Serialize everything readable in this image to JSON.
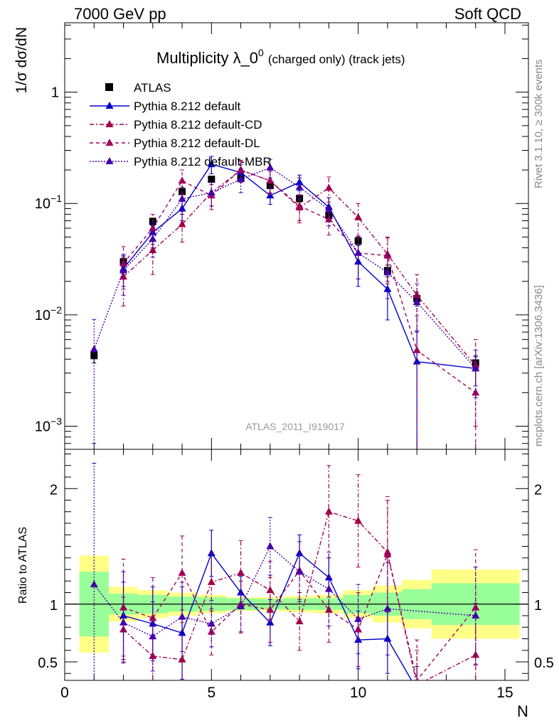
{
  "header": {
    "left": "7000 GeV pp",
    "right": "Soft QCD",
    "title_main": "Multiplicity λ_0",
    "title_sup": "0",
    "title_small": "(charged only) (track jets)",
    "side_top": "Rivet 3.1.10, ≥ 300k events",
    "side_bottom": "mcplots.cern.ch [arXiv:1306.3436]",
    "watermark": "ATLAS_2011_I919017"
  },
  "colors": {
    "default": "#0000cc",
    "cd": "#a0004a",
    "dl": "#a0005a",
    "mbr": "#4400aa",
    "band_inner": "#99ff99",
    "band_outer": "#ffff88"
  },
  "chart_data": [
    {
      "type": "scatter",
      "title": "Multiplicity λ_0^0 (charged only) (track jets)",
      "xlabel": "N",
      "ylabel": "1/σ dσ/dN",
      "yscale": "log",
      "xlim": [
        0,
        15.8
      ],
      "ylim": [
        0.00062,
        4.2
      ],
      "y_ticks": [
        {
          "v": 0.001,
          "base": "10",
          "exp": "−3"
        },
        {
          "v": 0.01,
          "base": "10",
          "exp": "−2"
        },
        {
          "v": 0.1,
          "base": "10",
          "exp": "−1"
        },
        {
          "v": 1,
          "base": "1",
          "exp": ""
        }
      ],
      "legend": [
        {
          "key": "atlas",
          "label": "ATLAS"
        },
        {
          "key": "default",
          "label": "Pythia 8.212 default"
        },
        {
          "key": "cd",
          "label": "Pythia 8.212 default-CD"
        },
        {
          "key": "dl",
          "label": "Pythia 8.212 default-DL"
        },
        {
          "key": "mbr",
          "label": "Pythia 8.212 default-MBR"
        }
      ],
      "series": [
        {
          "key": "atlas",
          "name": "ATLAS",
          "x": [
            1,
            2,
            3,
            4,
            5,
            6,
            7,
            8,
            9,
            10,
            11,
            12,
            14
          ],
          "y": [
            0.0043,
            0.03,
            0.069,
            0.128,
            0.165,
            0.17,
            0.145,
            0.111,
            0.078,
            0.046,
            0.025,
            0.014,
            0.0037
          ],
          "err": [
            0.0006,
            0.003,
            0.005,
            0.008,
            0.01,
            0.01,
            0.009,
            0.008,
            0.006,
            0.004,
            0.003,
            0.002,
            0.0005
          ]
        },
        {
          "key": "default",
          "name": "Pythia 8.212 default",
          "x": [
            2,
            3,
            4,
            5,
            6,
            7,
            8,
            9,
            10,
            11,
            12,
            14
          ],
          "y": [
            0.026,
            0.055,
            0.09,
            0.225,
            0.19,
            0.118,
            0.155,
            0.093,
            0.03,
            0.017,
            0.0038,
            0.0033
          ],
          "err": [
            0.008,
            0.012,
            0.02,
            0.04,
            0.035,
            0.02,
            0.025,
            0.02,
            0.012,
            0.008,
            0.0034,
            0.001
          ]
        },
        {
          "key": "cd",
          "name": "Pythia 8.212 default-CD",
          "x": [
            2,
            3,
            4,
            5,
            6,
            7,
            8,
            9,
            10,
            11,
            12,
            14
          ],
          "y": [
            0.022,
            0.038,
            0.065,
            0.125,
            0.2,
            0.16,
            0.092,
            0.138,
            0.075,
            0.035,
            0.015,
            0.0035
          ],
          "err": [
            0.01,
            0.015,
            0.02,
            0.03,
            0.04,
            0.035,
            0.025,
            0.035,
            0.025,
            0.015,
            0.008,
            0.0025
          ]
        },
        {
          "key": "dl",
          "name": "Pythia 8.212 default-DL",
          "x": [
            2,
            3,
            4,
            5,
            6,
            7,
            8,
            9,
            10,
            11,
            12,
            14
          ],
          "y": [
            0.029,
            0.06,
            0.16,
            0.118,
            0.2,
            0.16,
            0.095,
            0.072,
            0.036,
            0.034,
            0.0048,
            0.002
          ],
          "err": [
            0.012,
            0.02,
            0.04,
            0.03,
            0.045,
            0.04,
            0.025,
            0.02,
            0.015,
            0.015,
            0.005,
            0.0018
          ]
        },
        {
          "key": "mbr",
          "name": "Pythia 8.212 default-MBR",
          "x": [
            1,
            2,
            3,
            4,
            5,
            6,
            7,
            8,
            9,
            10,
            11,
            12,
            14
          ],
          "y": [
            0.0049,
            0.025,
            0.048,
            0.11,
            0.125,
            0.165,
            0.21,
            0.14,
            0.088,
            0.036,
            0.024,
            0.013,
            0.0033
          ],
          "err": [
            0.0042,
            0.01,
            0.015,
            0.03,
            0.03,
            0.04,
            0.04,
            0.03,
            0.025,
            0.015,
            0.01,
            0.006,
            0.0015
          ]
        }
      ]
    },
    {
      "type": "scatter",
      "ylabel": "Ratio to ATLAS",
      "xlabel": "N",
      "xlim": [
        0,
        15.8
      ],
      "ylim": [
        0.34,
        2.34
      ],
      "x_ticks": [
        0,
        5,
        10,
        15
      ],
      "y_ticks": [
        0.5,
        1,
        2
      ],
      "bands": {
        "edges": [
          0.5,
          1.5,
          2.5,
          3.5,
          4.5,
          5.5,
          6.5,
          7.5,
          8.5,
          9.5,
          10.5,
          11.5,
          12.5,
          15.5
        ],
        "inner": [
          0.28,
          0.09,
          0.08,
          0.065,
          0.06,
          0.05,
          0.045,
          0.05,
          0.05,
          0.08,
          0.1,
          0.13,
          0.18
        ],
        "outer": [
          0.42,
          0.15,
          0.12,
          0.1,
          0.08,
          0.06,
          0.06,
          0.07,
          0.08,
          0.12,
          0.16,
          0.21,
          0.3
        ]
      },
      "series": [
        {
          "key": "default",
          "x": [
            2,
            3,
            4,
            5,
            6,
            7,
            8,
            9,
            10,
            11,
            12
          ],
          "y": [
            0.9,
            0.83,
            0.75,
            1.44,
            1.1,
            0.84,
            1.44,
            1.23,
            0.69,
            0.7,
            0.26
          ],
          "err": [
            0.38,
            0.32,
            0.4,
            0.2,
            0.14,
            0.2,
            0.16,
            0.17,
            0.25,
            0.3,
            0.2
          ]
        },
        {
          "key": "cd",
          "x": [
            2,
            3,
            4,
            5,
            6,
            7,
            8,
            9,
            10,
            11,
            12,
            14
          ],
          "y": [
            0.78,
            0.55,
            0.52,
            1.19,
            1.27,
            1.12,
            0.85,
            1.8,
            1.72,
            1.45,
            0.3,
            0.56
          ],
          "err": [
            0.28,
            0.3,
            0.32,
            0.25,
            0.28,
            0.25,
            0.25,
            0.4,
            0.4,
            0.45,
            0.3,
            0.45
          ]
        },
        {
          "key": "dl",
          "x": [
            2,
            3,
            4,
            5,
            6,
            7,
            8,
            9,
            10,
            11,
            12,
            14
          ],
          "y": [
            0.97,
            0.88,
            1.27,
            0.76,
            1.0,
            0.95,
            1.29,
            0.95,
            0.78,
            1.43,
            0.34,
            0.97
          ],
          "err": [
            0.42,
            0.35,
            0.32,
            0.2,
            0.25,
            0.28,
            0.25,
            0.28,
            0.32,
            0.5,
            0.35,
            0.5
          ]
        },
        {
          "key": "mbr",
          "x": [
            1,
            2,
            3,
            4,
            5,
            6,
            7,
            8,
            9,
            10,
            11,
            14
          ],
          "y": [
            1.17,
            0.84,
            0.72,
            0.89,
            0.83,
            0.98,
            1.5,
            1.28,
            1.13,
            0.87,
            0.96,
            0.9
          ],
          "err": [
            1.05,
            0.35,
            0.3,
            0.3,
            0.2,
            0.22,
            0.25,
            0.26,
            0.32,
            0.3,
            0.4,
            0.42
          ]
        }
      ]
    }
  ]
}
